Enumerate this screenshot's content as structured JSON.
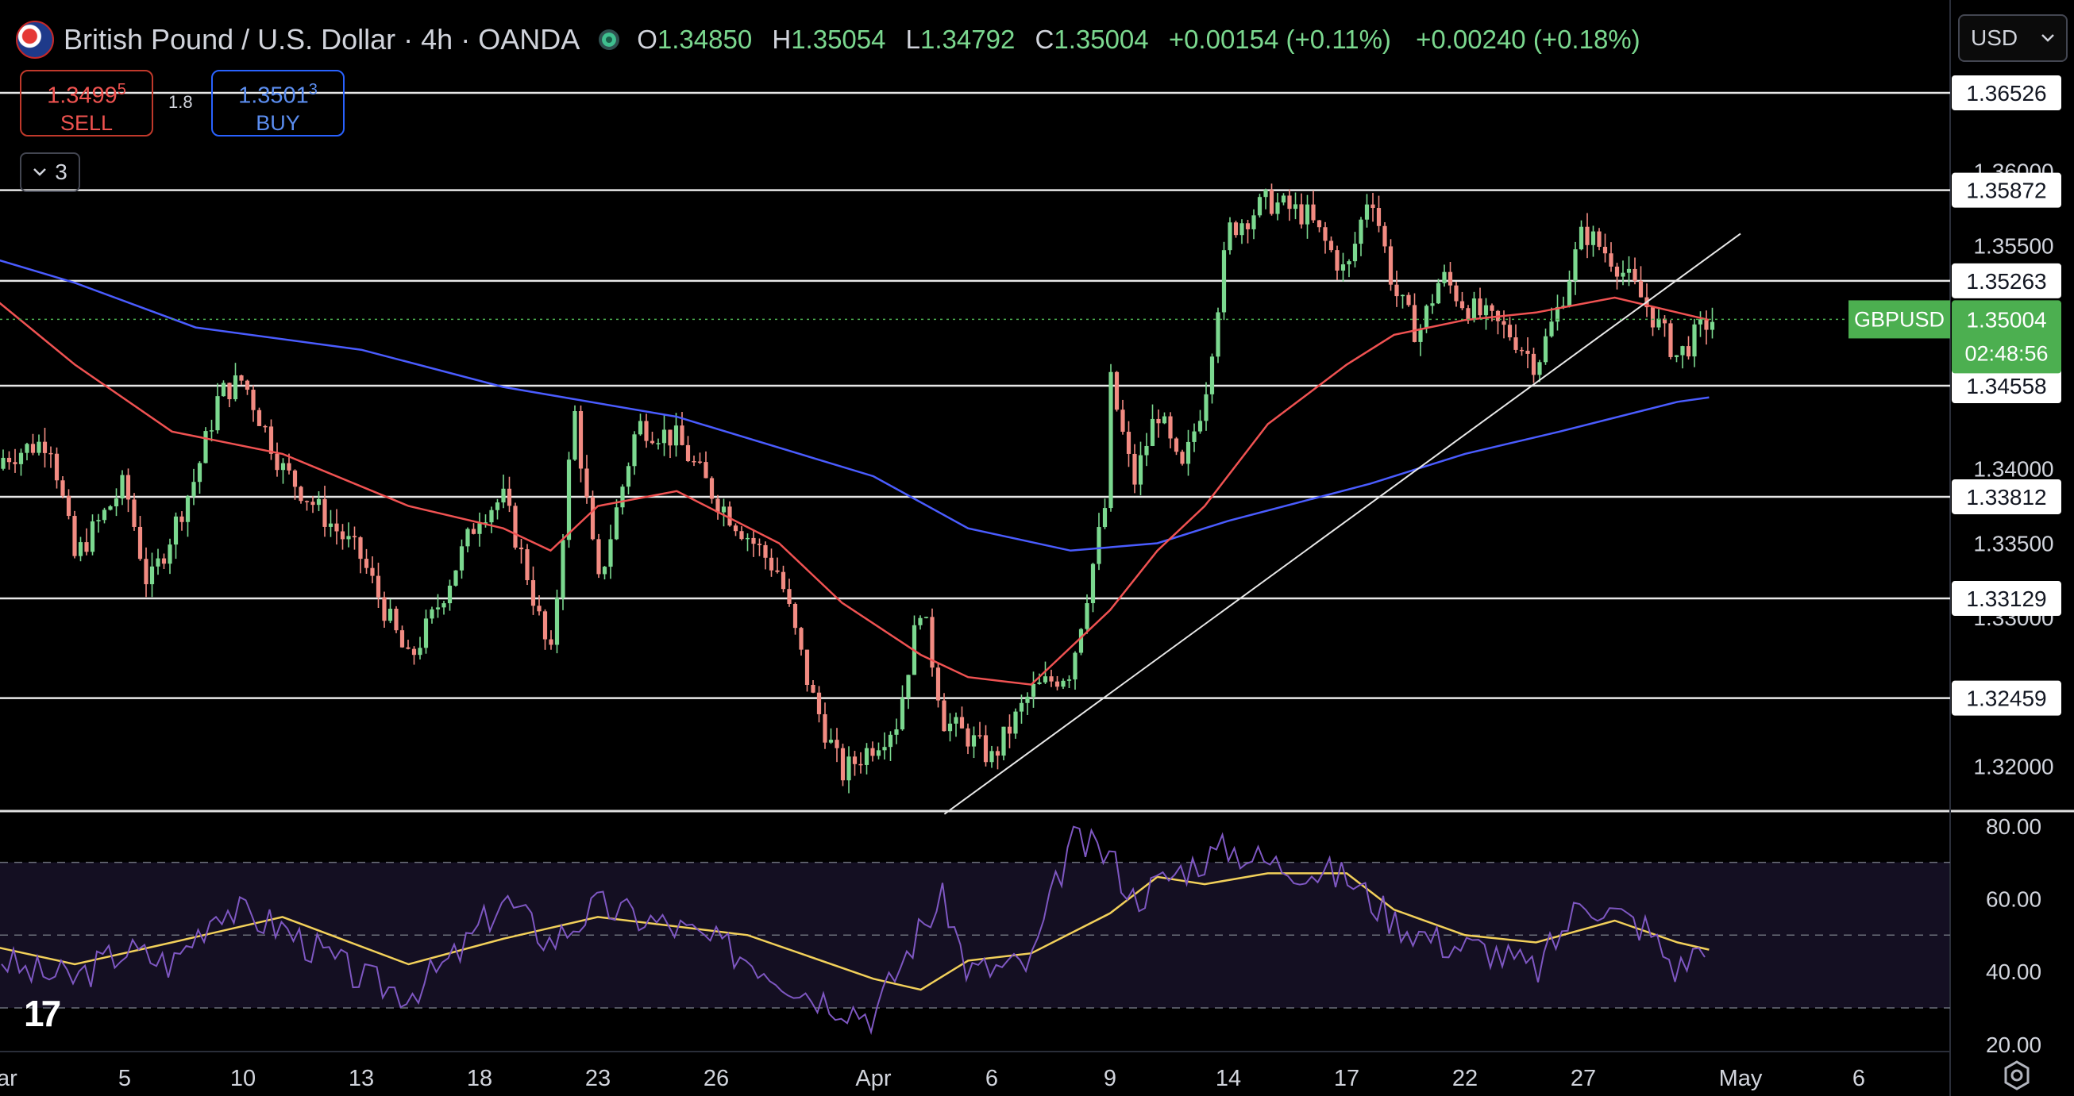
{
  "header": {
    "title": "British Pound / U.S. Dollar · 4h · OANDA",
    "ohlc": {
      "o_label": "O",
      "o": "1.34850",
      "h_label": "H",
      "h": "1.35054",
      "l_label": "L",
      "l": "1.34792",
      "c_label": "C",
      "c": "1.35004"
    },
    "change": "+0.00154 (+0.11%)",
    "change2": "+0.00240 (+0.18%)"
  },
  "trade": {
    "sell_price_main": "1.3499",
    "sell_price_sup": "5",
    "sell_label": "SELL",
    "buy_price_main": "1.3501",
    "buy_price_sup": "3",
    "buy_label": "BUY",
    "spread": "1.8"
  },
  "collapse": {
    "count": "3"
  },
  "currency": {
    "selected": "USD"
  },
  "colors": {
    "background": "#000000",
    "up": "#7bd88f",
    "down": "#f28b82",
    "ma_fast": "#f05252",
    "ma_slow": "#4a5cff",
    "rsi": "#7e57c2",
    "rsi_ma": "#f2d05a",
    "price_tag": "#4caf50",
    "rsi_band": "#140f22"
  },
  "icons": {
    "flag": "uk-us-flag-icon",
    "status": "market-status-icon",
    "chevron": "chevron-down-icon",
    "settings": "settings-icon",
    "logo": "tradingview-logo-icon"
  },
  "chart_data": {
    "type": "candlestick",
    "symbol": "GBPUSD",
    "timeframe": "4h",
    "x_ticks": [
      "ar",
      "5",
      "10",
      "13",
      "18",
      "23",
      "26",
      "Apr",
      "6",
      "9",
      "14",
      "17",
      "22",
      "27",
      "May",
      "6"
    ],
    "price_ticks": [
      "1.36000",
      "1.35500",
      "1.34000",
      "1.33500",
      "1.33000",
      "1.32000"
    ],
    "price_range": [
      1.317,
      1.3715
    ],
    "horizontal_levels": [
      "1.36526",
      "1.35872",
      "1.35263",
      "1.34558",
      "1.33812",
      "1.33129",
      "1.32459"
    ],
    "last_price": "1.35004",
    "countdown": "02:48:56",
    "trendline": {
      "from_date": "Apr 4",
      "from_price": 1.3168,
      "to_date": "May 2",
      "to_price": 1.3558
    },
    "swing_path": [
      {
        "d": "Feb 28",
        "p": 1.34
      },
      {
        "d": "Mar 3",
        "p": 1.342
      },
      {
        "d": "Mar 4",
        "p": 1.334
      },
      {
        "d": "Mar 6",
        "p": 1.339
      },
      {
        "d": "Mar 7",
        "p": 1.332
      },
      {
        "d": "Mar 9",
        "p": 1.3395
      },
      {
        "d": "Mar 10",
        "p": 1.345
      },
      {
        "d": "Mar 11",
        "p": 1.346
      },
      {
        "d": "Mar 12",
        "p": 1.34
      },
      {
        "d": "Mar 14",
        "p": 1.334
      },
      {
        "d": "Mar 16",
        "p": 1.327
      },
      {
        "d": "Mar 17",
        "p": 1.33
      },
      {
        "d": "Mar 19",
        "p": 1.337
      },
      {
        "d": "Mar 20",
        "p": 1.338
      },
      {
        "d": "Mar 21",
        "p": 1.333
      },
      {
        "d": "Mar 22",
        "p": 1.327
      },
      {
        "d": "Mar 23",
        "p": 1.344
      },
      {
        "d": "Mar 24",
        "p": 1.332
      },
      {
        "d": "Mar 25",
        "p": 1.343
      },
      {
        "d": "Mar 26",
        "p": 1.342
      },
      {
        "d": "Mar 27",
        "p": 1.338
      },
      {
        "d": "Mar 29",
        "p": 1.333
      },
      {
        "d": "Mar 30",
        "p": 1.325
      },
      {
        "d": "Mar 31",
        "p": 1.3195
      },
      {
        "d": "Apr 2",
        "p": 1.323
      },
      {
        "d": "Apr 3",
        "p": 1.331
      },
      {
        "d": "Apr 4",
        "p": 1.323
      },
      {
        "d": "Apr 5",
        "p": 1.322
      },
      {
        "d": "Apr 6",
        "p": 1.3205
      },
      {
        "d": "Apr 7",
        "p": 1.325
      },
      {
        "d": "Apr 8",
        "p": 1.3265
      },
      {
        "d": "Apr 9",
        "p": 1.339
      },
      {
        "d": "Apr 9 ",
        "p": 1.346
      },
      {
        "d": "Apr 10",
        "p": 1.339
      },
      {
        "d": "Apr 11",
        "p": 1.344
      },
      {
        "d": "Apr 12",
        "p": 1.3395
      },
      {
        "d": "Apr 13",
        "p": 1.345
      },
      {
        "d": "Apr 14",
        "p": 1.356
      },
      {
        "d": "Apr 15",
        "p": 1.358
      },
      {
        "d": "Apr 16",
        "p": 1.357
      },
      {
        "d": "Apr 17",
        "p": 1.353
      },
      {
        "d": "Apr 18",
        "p": 1.359
      },
      {
        "d": "Apr 19",
        "p": 1.352
      },
      {
        "d": "Apr 20",
        "p": 1.349
      },
      {
        "d": "Apr 21",
        "p": 1.353
      },
      {
        "d": "Apr 22",
        "p": 1.351
      },
      {
        "d": "Apr 23",
        "p": 1.35
      },
      {
        "d": "Apr 24",
        "p": 1.349
      },
      {
        "d": "Apr 25",
        "p": 1.347
      },
      {
        "d": "Apr 26",
        "p": 1.351
      },
      {
        "d": "Apr 27",
        "p": 1.356
      },
      {
        "d": "Apr 28",
        "p": 1.354
      },
      {
        "d": "Apr 29",
        "p": 1.351
      },
      {
        "d": "Apr 30",
        "p": 1.3475
      },
      {
        "d": "May 1",
        "p": 1.35
      }
    ],
    "ma_fast": [
      {
        "d": "Feb 28",
        "p": 1.3525
      },
      {
        "d": "Mar 4",
        "p": 1.347
      },
      {
        "d": "Mar 8",
        "p": 1.3425
      },
      {
        "d": "Mar 12",
        "p": 1.341
      },
      {
        "d": "Mar 16",
        "p": 1.3375
      },
      {
        "d": "Mar 20",
        "p": 1.336
      },
      {
        "d": "Mar 22",
        "p": 1.3345
      },
      {
        "d": "Mar 24",
        "p": 1.3375
      },
      {
        "d": "Mar 26",
        "p": 1.3385
      },
      {
        "d": "Mar 29",
        "p": 1.335
      },
      {
        "d": "Mar 31",
        "p": 1.331
      },
      {
        "d": "Apr 3",
        "p": 1.3275
      },
      {
        "d": "Apr 5",
        "p": 1.326
      },
      {
        "d": "Apr 7",
        "p": 1.3255
      },
      {
        "d": "Apr 9",
        "p": 1.3305
      },
      {
        "d": "Apr 11",
        "p": 1.3345
      },
      {
        "d": "Apr 13",
        "p": 1.3375
      },
      {
        "d": "Apr 15",
        "p": 1.343
      },
      {
        "d": "Apr 17",
        "p": 1.347
      },
      {
        "d": "Apr 19",
        "p": 1.349
      },
      {
        "d": "Apr 22",
        "p": 1.35
      },
      {
        "d": "Apr 25",
        "p": 1.3505
      },
      {
        "d": "Apr 28",
        "p": 1.3515
      },
      {
        "d": "Apr 30",
        "p": 1.3505
      },
      {
        "d": "May 1",
        "p": 1.35
      }
    ],
    "ma_slow": [
      {
        "d": "Feb 28",
        "p": 1.3545
      },
      {
        "d": "Mar 4",
        "p": 1.3525
      },
      {
        "d": "Mar 9",
        "p": 1.3495
      },
      {
        "d": "Mar 14",
        "p": 1.348
      },
      {
        "d": "Mar 20",
        "p": 1.3455
      },
      {
        "d": "Mar 26",
        "p": 1.3435
      },
      {
        "d": "Apr 1",
        "p": 1.3395
      },
      {
        "d": "Apr 5",
        "p": 1.336
      },
      {
        "d": "Apr 8",
        "p": 1.3345
      },
      {
        "d": "Apr 11",
        "p": 1.335
      },
      {
        "d": "Apr 14",
        "p": 1.3365
      },
      {
        "d": "Apr 18",
        "p": 1.339
      },
      {
        "d": "Apr 22",
        "p": 1.341
      },
      {
        "d": "Apr 26",
        "p": 1.3425
      },
      {
        "d": "Apr 30",
        "p": 1.3445
      },
      {
        "d": "May 1",
        "p": 1.3448
      }
    ],
    "rsi": {
      "ticks": [
        "80.00",
        "60.00",
        "40.00",
        "20.00"
      ],
      "range": [
        18,
        83
      ],
      "bands": [
        70,
        50,
        30
      ],
      "path": [
        {
          "d": "Feb 28",
          "p": 48
        },
        {
          "d": "Mar 2",
          "p": 40
        },
        {
          "d": "Mar 4",
          "p": 38
        },
        {
          "d": "Mar 6",
          "p": 46
        },
        {
          "d": "Mar 8",
          "p": 42
        },
        {
          "d": "Mar 10",
          "p": 58
        },
        {
          "d": "Mar 12",
          "p": 52
        },
        {
          "d": "Mar 14",
          "p": 38
        },
        {
          "d": "Mar 16",
          "p": 34
        },
        {
          "d": "Mar 18",
          "p": 44
        },
        {
          "d": "Mar 20",
          "p": 60
        },
        {
          "d": "Mar 22",
          "p": 48
        },
        {
          "d": "Mar 24",
          "p": 58
        },
        {
          "d": "Mar 26",
          "p": 52
        },
        {
          "d": "Mar 28",
          "p": 44
        },
        {
          "d": "Mar 30",
          "p": 34
        },
        {
          "d": "Apr 1",
          "p": 28
        },
        {
          "d": "Apr 3",
          "p": 52
        },
        {
          "d": "Apr 4",
          "p": 60
        },
        {
          "d": "Apr 5",
          "p": 40
        },
        {
          "d": "Apr 7",
          "p": 42
        },
        {
          "d": "Apr 8",
          "p": 76
        },
        {
          "d": "Apr 9",
          "p": 72
        },
        {
          "d": "Apr 10",
          "p": 60
        },
        {
          "d": "Apr 12",
          "p": 68
        },
        {
          "d": "Apr 14",
          "p": 74
        },
        {
          "d": "Apr 15",
          "p": 70
        },
        {
          "d": "Apr 17",
          "p": 66
        },
        {
          "d": "Apr 19",
          "p": 54
        },
        {
          "d": "Apr 21",
          "p": 48
        },
        {
          "d": "Apr 23",
          "p": 46
        },
        {
          "d": "Apr 25",
          "p": 40
        },
        {
          "d": "Apr 27",
          "p": 60
        },
        {
          "d": "Apr 29",
          "p": 52
        },
        {
          "d": "Apr 30",
          "p": 40
        },
        {
          "d": "May 1",
          "p": 50
        }
      ],
      "ma": [
        {
          "d": "Feb 28",
          "p": 48
        },
        {
          "d": "Mar 4",
          "p": 42
        },
        {
          "d": "Mar 8",
          "p": 48
        },
        {
          "d": "Mar 12",
          "p": 55
        },
        {
          "d": "Mar 16",
          "p": 42
        },
        {
          "d": "Mar 20",
          "p": 49
        },
        {
          "d": "Mar 24",
          "p": 55
        },
        {
          "d": "Mar 28",
          "p": 50
        },
        {
          "d": "Apr 1",
          "p": 38
        },
        {
          "d": "Apr 3",
          "p": 35
        },
        {
          "d": "Apr 5",
          "p": 43
        },
        {
          "d": "Apr 7",
          "p": 45
        },
        {
          "d": "Apr 9",
          "p": 56
        },
        {
          "d": "Apr 11",
          "p": 66
        },
        {
          "d": "Apr 13",
          "p": 64
        },
        {
          "d": "Apr 15",
          "p": 67
        },
        {
          "d": "Apr 17",
          "p": 67
        },
        {
          "d": "Apr 19",
          "p": 57
        },
        {
          "d": "Apr 22",
          "p": 50
        },
        {
          "d": "Apr 25",
          "p": 48
        },
        {
          "d": "Apr 28",
          "p": 54
        },
        {
          "d": "Apr 30",
          "p": 48
        },
        {
          "d": "May 1",
          "p": 46
        }
      ]
    }
  }
}
